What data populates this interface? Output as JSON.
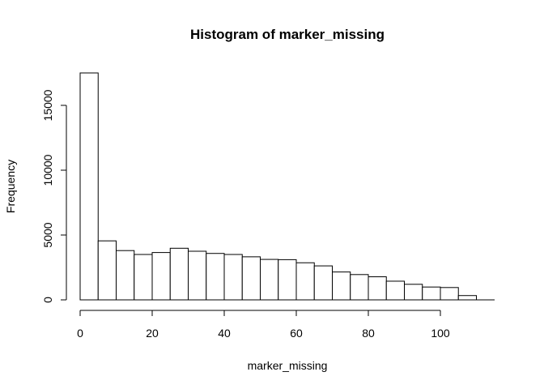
{
  "chart_data": {
    "type": "bar",
    "title": "Histogram of marker_missing",
    "xlabel": "marker_missing",
    "ylabel": "Frequency",
    "bin_width": 5,
    "bins": [
      {
        "start": 0,
        "end": 5,
        "count": 17500
      },
      {
        "start": 5,
        "end": 10,
        "count": 4550
      },
      {
        "start": 10,
        "end": 15,
        "count": 3800
      },
      {
        "start": 15,
        "end": 20,
        "count": 3500
      },
      {
        "start": 20,
        "end": 25,
        "count": 3650
      },
      {
        "start": 25,
        "end": 30,
        "count": 3980
      },
      {
        "start": 30,
        "end": 35,
        "count": 3750
      },
      {
        "start": 35,
        "end": 40,
        "count": 3580
      },
      {
        "start": 40,
        "end": 45,
        "count": 3500
      },
      {
        "start": 45,
        "end": 50,
        "count": 3320
      },
      {
        "start": 50,
        "end": 55,
        "count": 3120
      },
      {
        "start": 55,
        "end": 60,
        "count": 3100
      },
      {
        "start": 60,
        "end": 65,
        "count": 2860
      },
      {
        "start": 65,
        "end": 70,
        "count": 2620
      },
      {
        "start": 70,
        "end": 75,
        "count": 2150
      },
      {
        "start": 75,
        "end": 80,
        "count": 1950
      },
      {
        "start": 80,
        "end": 85,
        "count": 1780
      },
      {
        "start": 85,
        "end": 90,
        "count": 1440
      },
      {
        "start": 90,
        "end": 95,
        "count": 1200
      },
      {
        "start": 95,
        "end": 100,
        "count": 990
      },
      {
        "start": 100,
        "end": 105,
        "count": 950
      },
      {
        "start": 105,
        "end": 110,
        "count": 330
      },
      {
        "start": 110,
        "end": 115,
        "count": 0
      }
    ],
    "xlim": [
      0,
      115
    ],
    "ylim": [
      0,
      17500
    ],
    "x_ticks": [
      0,
      20,
      40,
      60,
      80,
      100
    ],
    "x_tick_labels": [
      "0",
      "20",
      "40",
      "60",
      "80",
      "100"
    ],
    "y_ticks": [
      0,
      5000,
      10000,
      15000
    ],
    "y_tick_labels": [
      "0",
      "5000",
      "10000",
      "15000"
    ],
    "grid": false,
    "legend": "none"
  }
}
